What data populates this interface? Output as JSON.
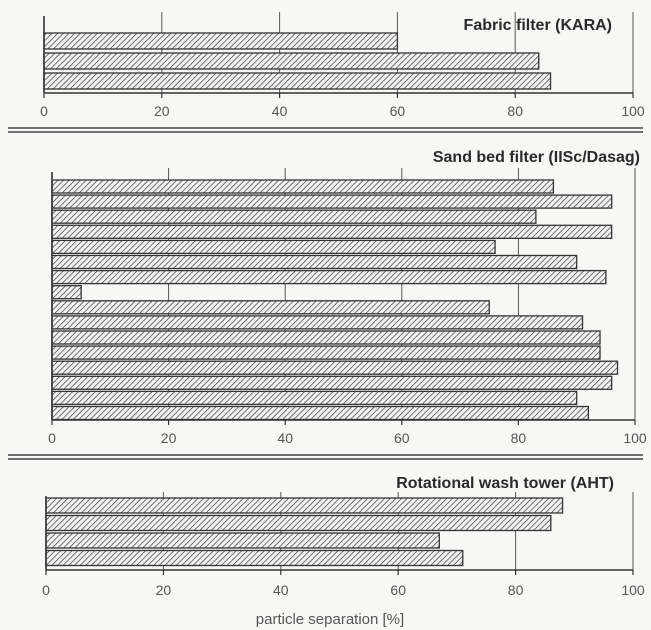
{
  "chart_data": [
    {
      "type": "bar",
      "orientation": "horizontal",
      "title": "Fabric filter (KARA)",
      "values": [
        60,
        84,
        86
      ],
      "xlim": [
        0,
        100
      ],
      "xticks": [
        0,
        20,
        40,
        60,
        80,
        100
      ],
      "grid": true
    },
    {
      "type": "bar",
      "orientation": "horizontal",
      "title": "Sand bed filter (IISc/Dasag)",
      "values": [
        86,
        96,
        83,
        96,
        76,
        90,
        95,
        5,
        75,
        91,
        94,
        94,
        97,
        96,
        90,
        92
      ],
      "xlim": [
        0,
        100
      ],
      "xticks": [
        0,
        20,
        40,
        60,
        80,
        100
      ],
      "grid": true
    },
    {
      "type": "bar",
      "orientation": "horizontal",
      "title": "Rotational wash tower (AHT)",
      "values": [
        88,
        86,
        67,
        71
      ],
      "xlim": [
        0,
        100
      ],
      "xticks": [
        0,
        20,
        40,
        60,
        80,
        100
      ],
      "grid": true
    }
  ],
  "xlabel": "particle separation [%]",
  "colors": {
    "bar_fill": "#f2f2f2",
    "hatch": "#3a3a3a",
    "axis": "#333333",
    "grid": "#555555"
  }
}
